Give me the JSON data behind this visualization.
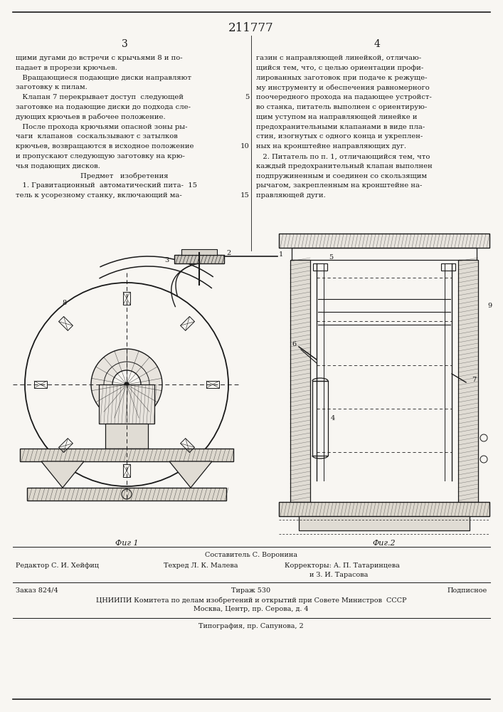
{
  "patent_number": "211777",
  "page_col_left": "3",
  "page_col_right": "4",
  "bg_color": "#f8f6f2",
  "text_color": "#1a1a1a",
  "col_left_lines": [
    "щими дугами до встречи с крычьями 8 и по-",
    "падает в прорези крючьев.",
    "   Вращающиеся подающие диски направляют",
    "заготовку к пилам.",
    "   Клапан 7 перекрывает доступ  следующей",
    "заготовке на подающие диски до подхода сле-",
    "дующих крючьев в рабочее положение.",
    "   После прохода крючьями опасной зоны ры-",
    "чаги  клапанов  соскальзывают с затылков",
    "крючьев, возвращаются в исходное положение",
    "и пропускают следующую заготовку на крю-",
    "чья подающих дисков.",
    "      Предмет   изобретения",
    "   1. Гравитационный  автоматический пита-  15",
    "тель к усорезному станку, включающий ма-"
  ],
  "col_right_lines": [
    "газин с направляющей линейкой, отличаю-",
    "щийся тем, что, с целью ориентации профи-",
    "лированных заготовок при подаче к режуще-",
    "му инструменту и обеспечения равномерного",
    "поочередного прохода на падающее устройст-",
    "во станка, питатель выполнен с ориентирую-",
    "щим уступом на направляющей линейке и",
    "предохранительными клапанами в виде пла-",
    "стин, изогнутых с одного конца и укреплен-",
    "ных на кронштейне направляющих дуг.",
    "   2. Питатель по п. 1, отличающийся тем, что",
    "каждый предохранительный клапан выполнен",
    "подпружиненным и соединен со скользящим",
    "рычагом, закрепленным на кронштейне на-",
    "правляющей дуги."
  ],
  "fig1_label": "Фиг 1",
  "fig2_label": "Фиг.2",
  "bottom_composer": "Составитель С. Воронина",
  "bottom_editor": "Редактор С. И. Хейфиц",
  "bottom_tech": "Техред Л. К. Малева",
  "bottom_correctors": "Корректоры: А. П. Татаринцева",
  "bottom_correctors2": "и З. И. Тарасова",
  "bottom_order": "Заказ 824/4",
  "bottom_tirazh": "Тираж 530",
  "bottom_podpisnoe": "Подписное",
  "bottom_org": "ЦНИИПИ Комитета по делам изобретений и открытий при Совете Министров  СССР",
  "bottom_addr": "Москва, Центр, пр. Серова, д. 4",
  "bottom_tipog": "Типография, пр. Сапунова, 2"
}
